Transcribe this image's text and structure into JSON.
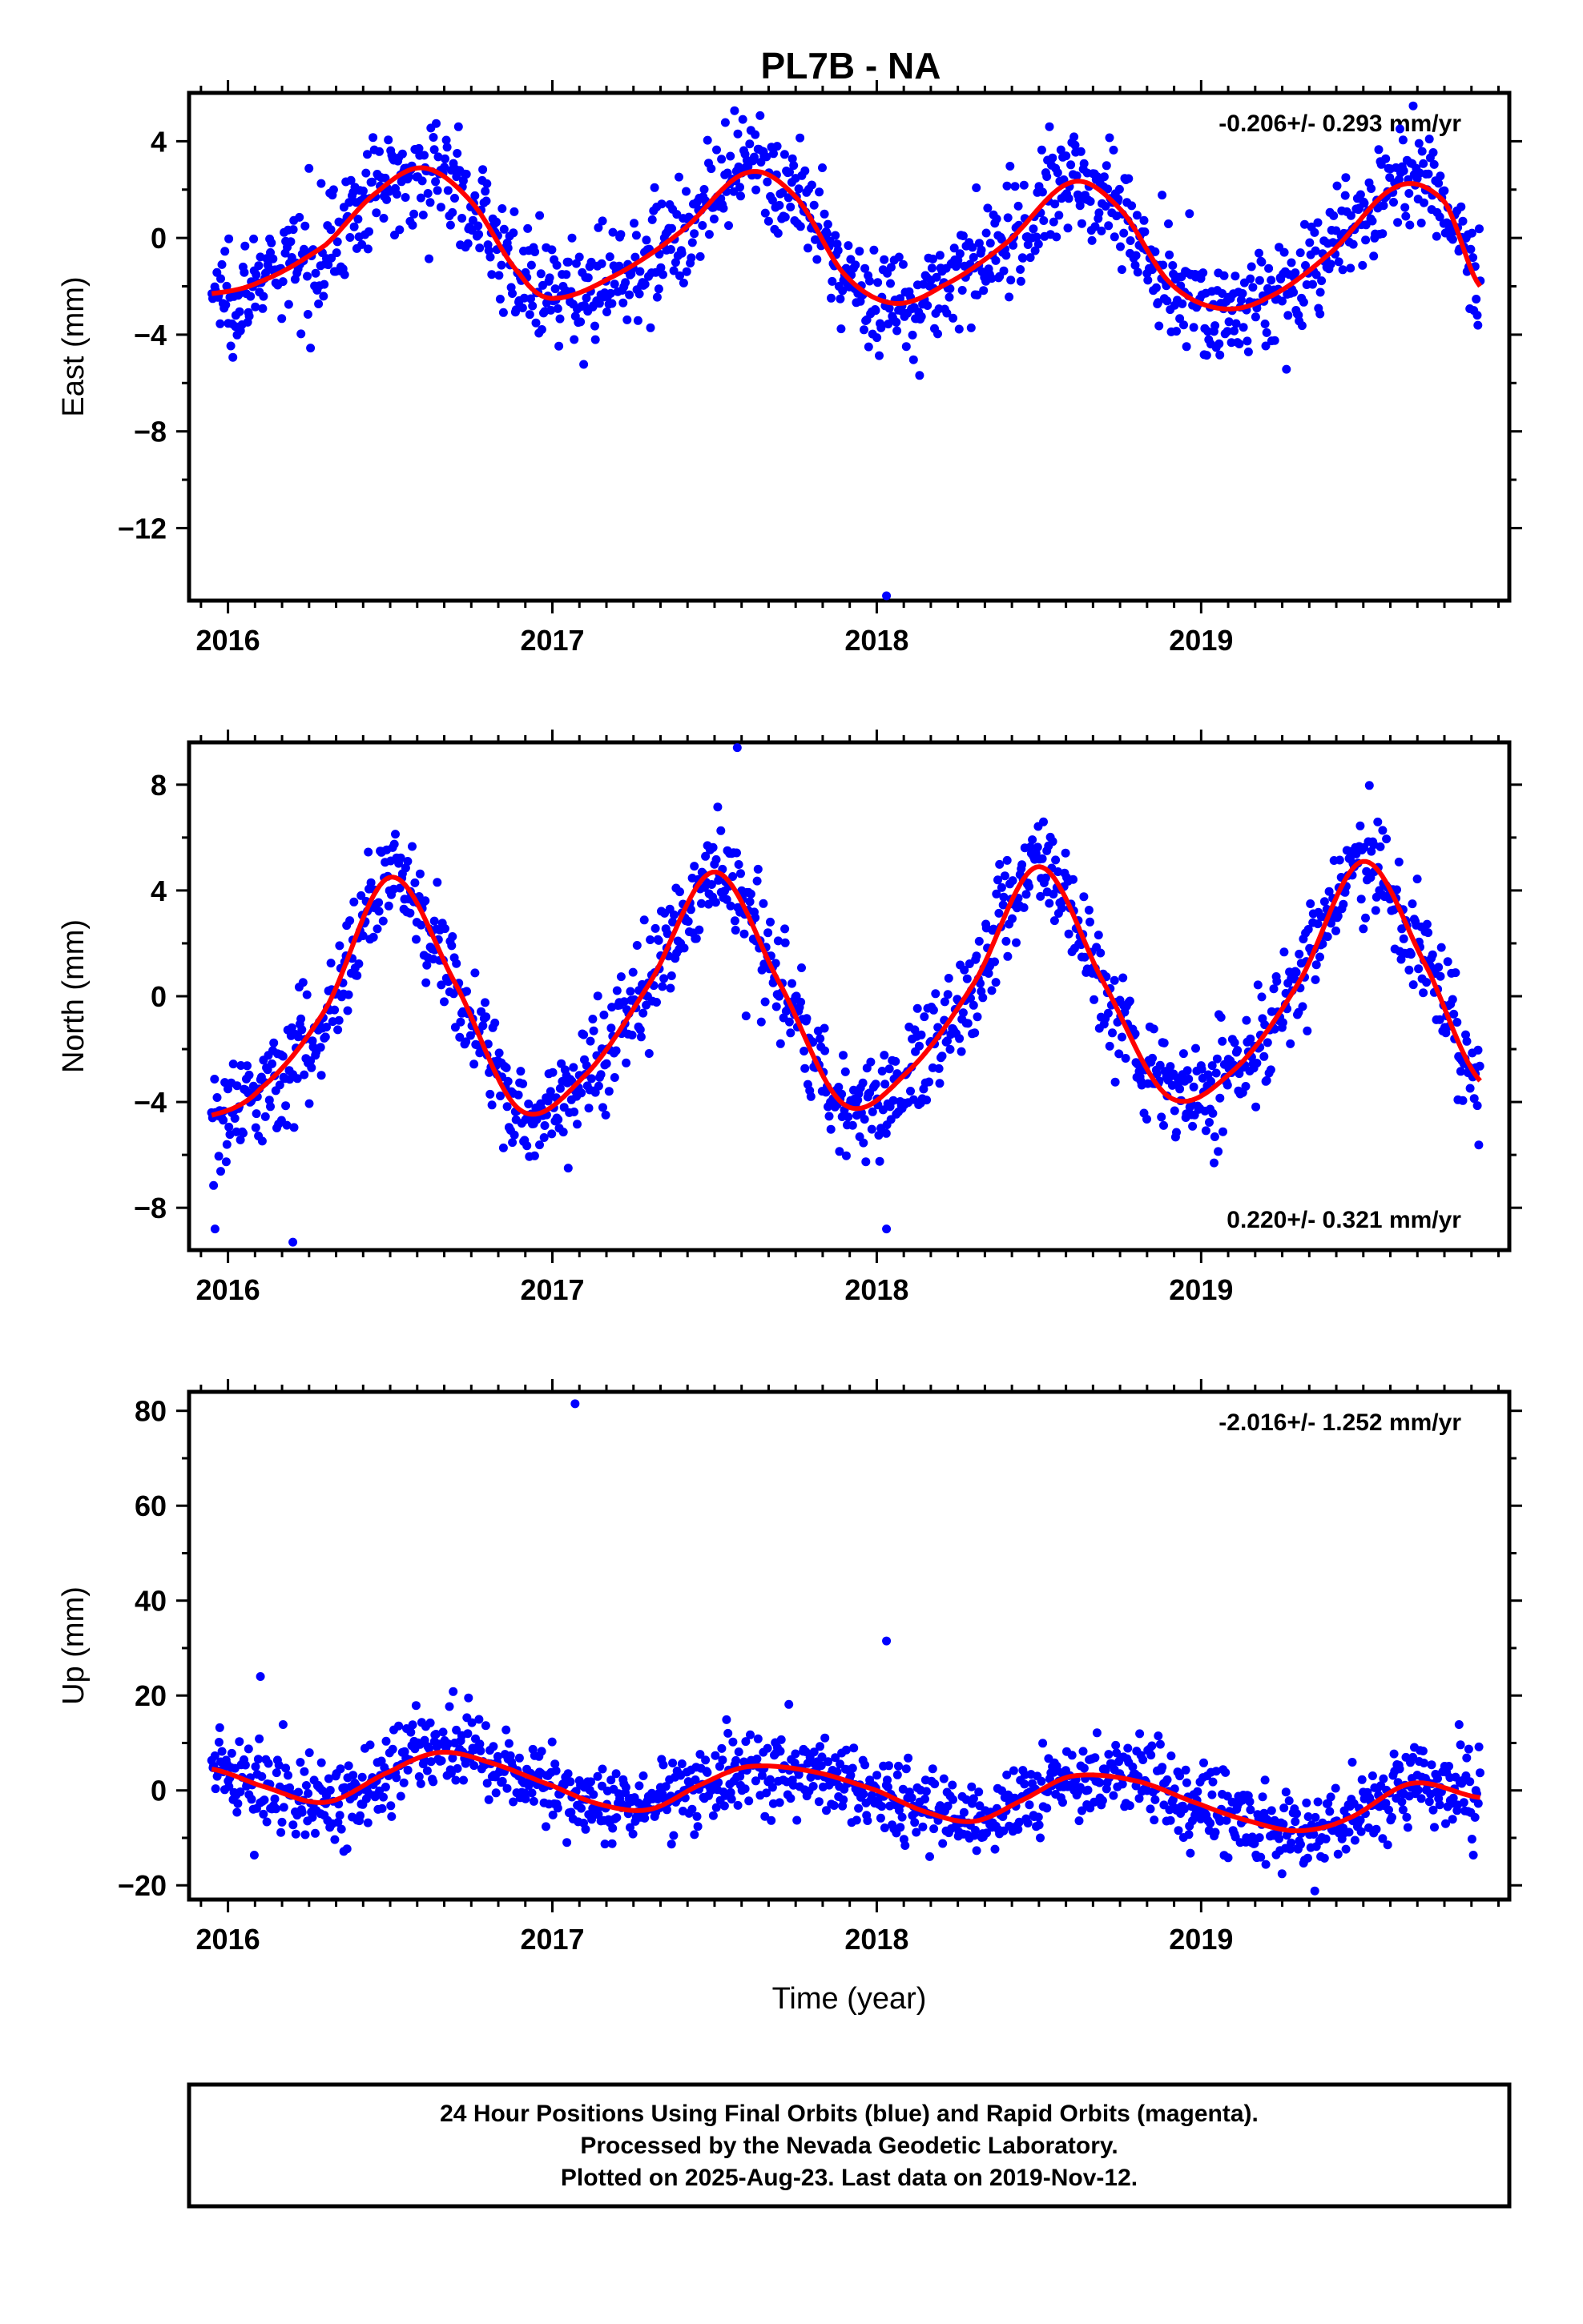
{
  "title": "PL7B - NA",
  "footer": {
    "line1": "24 Hour Positions Using Final Orbits (blue) and Rapid Orbits (magenta).",
    "line2": "Processed by the Nevada Geodetic Laboratory.",
    "line3": "Plotted on 2025-Aug-23. Last data on 2019-Nov-12."
  },
  "colors": {
    "points": "#0000ff",
    "fit": "#ff0000",
    "axis": "#000000"
  },
  "chart_data": [
    {
      "type": "scatter",
      "component": "east",
      "ylabel": "East (mm)",
      "xlabel": "",
      "rate_label": "-0.206+/- 0.293 mm/yr",
      "rate_position": "top-right",
      "xlim": [
        2015.88,
        2019.95
      ],
      "ylim": [
        -15,
        6
      ],
      "xticks": [
        2016,
        2017,
        2018,
        2019
      ],
      "xtick_labels": [
        "2016",
        "2017",
        "2018",
        "2019"
      ],
      "yticks": [
        4,
        0,
        -4,
        -8,
        -12
      ],
      "ytick_labels": [
        "4",
        "0",
        "−4",
        "−8",
        "−12"
      ],
      "fit_x": [
        2015.95,
        2016.1,
        2016.3,
        2016.45,
        2016.6,
        2016.75,
        2016.9,
        2017.0,
        2017.2,
        2017.4,
        2017.6,
        2017.75,
        2017.9,
        2018.05,
        2018.2,
        2018.4,
        2018.6,
        2018.75,
        2018.9,
        2019.05,
        2019.2,
        2019.4,
        2019.6,
        2019.75,
        2019.86
      ],
      "fit_y": [
        -2.3,
        -1.8,
        -0.3,
        1.8,
        2.9,
        1.5,
        -1.5,
        -2.5,
        -1.5,
        0.3,
        2.7,
        1.7,
        -1.5,
        -2.7,
        -2.0,
        -0.2,
        2.3,
        1.2,
        -1.8,
        -2.9,
        -2.5,
        -0.6,
        2.1,
        1.5,
        -2.0
      ],
      "seasonal": {
        "offset": 0.1,
        "c1": -0.2,
        "s1": -2.4,
        "c2": -0.9,
        "s2": 0.4,
        "noise": 1.1
      },
      "outliers": [
        {
          "x": 2018.03,
          "y": -14.8
        }
      ]
    },
    {
      "type": "scatter",
      "component": "north",
      "ylabel": "North (mm)",
      "xlabel": "",
      "rate_label": "0.220+/- 0.321 mm/yr",
      "rate_position": "bottom-right",
      "xlim": [
        2015.88,
        2019.95
      ],
      "ylim": [
        -9.6,
        9.6
      ],
      "xticks": [
        2016,
        2017,
        2018,
        2019
      ],
      "xtick_labels": [
        "2016",
        "2017",
        "2018",
        "2019"
      ],
      "yticks": [
        8,
        4,
        0,
        -4,
        -8
      ],
      "ytick_labels": [
        "8",
        "4",
        "0",
        "−4",
        "−8"
      ],
      "fit_x": [
        2015.95,
        2016.1,
        2016.3,
        2016.5,
        2016.7,
        2016.9,
        2017.1,
        2017.3,
        2017.5,
        2017.7,
        2017.9,
        2018.1,
        2018.3,
        2018.5,
        2018.7,
        2018.9,
        2019.1,
        2019.3,
        2019.5,
        2019.7,
        2019.86
      ],
      "fit_y": [
        -4.5,
        -3.5,
        -0.5,
        4.5,
        0.5,
        -4.3,
        -3.0,
        0.5,
        4.7,
        0.5,
        -4.1,
        -2.8,
        0.5,
        4.9,
        0.5,
        -3.8,
        -2.8,
        0.5,
        5.1,
        1.0,
        -3.2
      ],
      "seasonal": {
        "offset": 0.2,
        "c1": -0.5,
        "s1": -1.5,
        "c2": 0.2,
        "s2": -0.6,
        "noise": 1.0,
        "scale": 3.0
      },
      "outliers": [
        {
          "x": 2017.57,
          "y": 9.4
        },
        {
          "x": 2018.03,
          "y": -8.8
        },
        {
          "x": 2016.2,
          "y": -9.3
        },
        {
          "x": 2015.96,
          "y": -8.8
        }
      ]
    },
    {
      "type": "scatter",
      "component": "up",
      "ylabel": "Up (mm)",
      "xlabel": "Time (year)",
      "rate_label": "-2.016+/- 1.252 mm/yr",
      "rate_position": "top-right",
      "xlim": [
        2015.88,
        2019.95
      ],
      "ylim": [
        -23,
        84
      ],
      "xticks": [
        2016,
        2017,
        2018,
        2019
      ],
      "xtick_labels": [
        "2016",
        "2017",
        "2018",
        "2019"
      ],
      "yticks": [
        80,
        60,
        40,
        20,
        0,
        -20
      ],
      "ytick_labels": [
        "80",
        "60",
        "40",
        "20",
        "0",
        "−20"
      ],
      "fit_x": [
        2015.95,
        2016.1,
        2016.3,
        2016.5,
        2016.65,
        2016.8,
        2017.0,
        2017.15,
        2017.3,
        2017.45,
        2017.6,
        2017.8,
        2018.0,
        2018.15,
        2018.3,
        2018.45,
        2018.6,
        2018.8,
        2019.0,
        2019.15,
        2019.3,
        2019.45,
        2019.65,
        2019.86
      ],
      "fit_y": [
        4.5,
        1.0,
        -2.5,
        4.0,
        8.0,
        6.0,
        1.0,
        -3.0,
        -4.0,
        1.0,
        5.0,
        4.0,
        0.0,
        -4.5,
        -6.5,
        -2.0,
        3.0,
        2.0,
        -3.0,
        -6.5,
        -8.5,
        -6.0,
        1.5,
        -1.5
      ],
      "seasonal": {
        "offset": 0.0,
        "c1": 0.0,
        "s1": 0.0,
        "c2": 0.0,
        "s2": 0.0,
        "noise": 4.2
      },
      "outliers": [
        {
          "x": 2017.07,
          "y": 81.5
        },
        {
          "x": 2018.03,
          "y": 31.5
        },
        {
          "x": 2016.1,
          "y": 24
        }
      ]
    }
  ]
}
